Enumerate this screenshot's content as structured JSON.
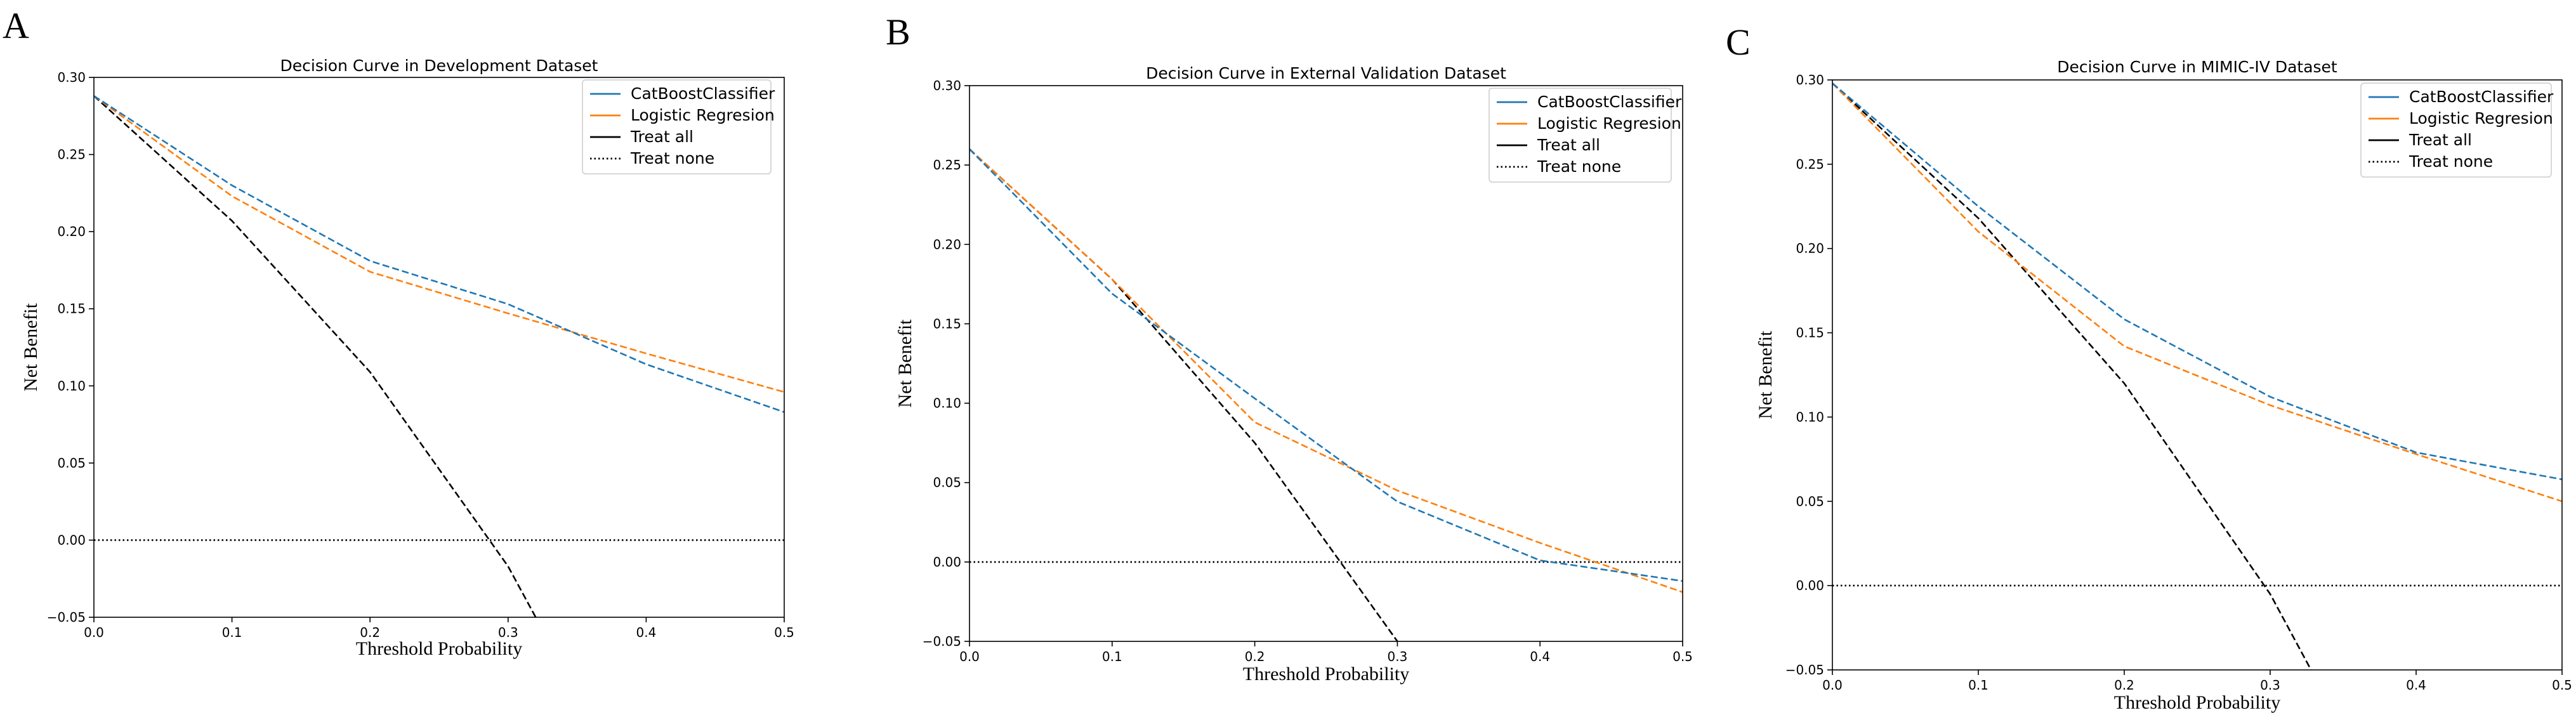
{
  "colors": {
    "catboost": "#1f77b4",
    "logistic": "#ff7f0e",
    "treat_all": "#000000",
    "treat_none": "#000000"
  },
  "chart_data": [
    {
      "panel_letter": "A",
      "type": "line",
      "title": "Decision Curve in Development Dataset",
      "xlabel": "Threshold Probability",
      "ylabel": "Net Benefit",
      "xlim": [
        0.0,
        0.5
      ],
      "ylim": [
        -0.05,
        0.3
      ],
      "xticks": [
        "0.0",
        "0.1",
        "0.2",
        "0.3",
        "0.4",
        "0.5"
      ],
      "yticks": [
        "−0.05",
        "0.00",
        "0.05",
        "0.10",
        "0.15",
        "0.20",
        "0.25",
        "0.30"
      ],
      "legend_position": "top-right",
      "grid": false,
      "series": [
        {
          "name": "CatBoostClassifier",
          "color": "#1f77b4",
          "style": "dashed",
          "legend_style": "solid",
          "x": [
            0.0,
            0.1,
            0.2,
            0.3,
            0.4,
            0.5
          ],
          "y": [
            0.288,
            0.23,
            0.181,
            0.153,
            0.114,
            0.083
          ]
        },
        {
          "name": "Logistic Regresion",
          "color": "#ff7f0e",
          "style": "dashed",
          "legend_style": "solid",
          "x": [
            0.0,
            0.1,
            0.2,
            0.3,
            0.4,
            0.5
          ],
          "y": [
            0.288,
            0.223,
            0.174,
            0.147,
            0.121,
            0.096
          ]
        },
        {
          "name": "Treat all",
          "color": "#000000",
          "style": "dashed",
          "legend_style": "solid",
          "x": [
            0.0,
            0.1,
            0.2,
            0.3,
            0.32
          ],
          "y": [
            0.288,
            0.207,
            0.109,
            -0.017,
            -0.05
          ]
        },
        {
          "name": "Treat none",
          "color": "#000000",
          "style": "dotted",
          "legend_style": "dotted",
          "x": [
            0.0,
            0.5
          ],
          "y": [
            0.0,
            0.0
          ]
        }
      ]
    },
    {
      "panel_letter": "B",
      "type": "line",
      "title": "Decision Curve in External Validation Dataset",
      "xlabel": "Threshold Probability",
      "ylabel": "Net Benefit",
      "xlim": [
        0.0,
        0.5
      ],
      "ylim": [
        -0.05,
        0.3
      ],
      "xticks": [
        "0.0",
        "0.1",
        "0.2",
        "0.3",
        "0.4",
        "0.5"
      ],
      "yticks": [
        "−0.05",
        "0.00",
        "0.05",
        "0.10",
        "0.15",
        "0.20",
        "0.25",
        "0.30"
      ],
      "legend_position": "top-right",
      "grid": false,
      "series": [
        {
          "name": "CatBoostClassifier",
          "color": "#1f77b4",
          "style": "dashed",
          "legend_style": "solid",
          "x": [
            0.0,
            0.1,
            0.2,
            0.3,
            0.4,
            0.5
          ],
          "y": [
            0.26,
            0.169,
            0.103,
            0.038,
            0.001,
            -0.012
          ]
        },
        {
          "name": "Logistic Regresion",
          "color": "#ff7f0e",
          "style": "dashed",
          "legend_style": "solid",
          "x": [
            0.0,
            0.1,
            0.2,
            0.3,
            0.4,
            0.5
          ],
          "y": [
            0.26,
            0.178,
            0.088,
            0.045,
            0.012,
            -0.019
          ]
        },
        {
          "name": "Treat all",
          "color": "#000000",
          "style": "dashed",
          "legend_style": "solid",
          "x": [
            0.0,
            0.1,
            0.2,
            0.3
          ],
          "y": [
            0.26,
            0.178,
            0.075,
            -0.05
          ]
        },
        {
          "name": "Treat none",
          "color": "#000000",
          "style": "dotted",
          "legend_style": "dotted",
          "x": [
            0.0,
            0.5
          ],
          "y": [
            0.0,
            0.0
          ]
        }
      ]
    },
    {
      "panel_letter": "C",
      "type": "line",
      "title": "Decision Curve in MIMIC-IV Dataset",
      "xlabel": "Threshold Probability",
      "ylabel": "Net Benefit",
      "xlim": [
        0.0,
        0.5
      ],
      "ylim": [
        -0.05,
        0.3
      ],
      "xticks": [
        "0.0",
        "0.1",
        "0.2",
        "0.3",
        "0.4",
        "0.5"
      ],
      "yticks": [
        "−0.05",
        "0.00",
        "0.05",
        "0.10",
        "0.15",
        "0.20",
        "0.25",
        "0.30"
      ],
      "legend_position": "top-right",
      "grid": false,
      "series": [
        {
          "name": "CatBoostClassifier",
          "color": "#1f77b4",
          "style": "dashed",
          "legend_style": "solid",
          "x": [
            0.0,
            0.1,
            0.2,
            0.3,
            0.4,
            0.5
          ],
          "y": [
            0.298,
            0.225,
            0.158,
            0.112,
            0.079,
            0.063
          ]
        },
        {
          "name": "Logistic Regresion",
          "color": "#ff7f0e",
          "style": "dashed",
          "legend_style": "solid",
          "x": [
            0.0,
            0.1,
            0.2,
            0.3,
            0.4,
            0.5
          ],
          "y": [
            0.298,
            0.21,
            0.142,
            0.107,
            0.078,
            0.05
          ]
        },
        {
          "name": "Treat all",
          "color": "#000000",
          "style": "dashed",
          "legend_style": "solid",
          "x": [
            0.0,
            0.1,
            0.2,
            0.3,
            0.328
          ],
          "y": [
            0.298,
            0.218,
            0.12,
            -0.005,
            -0.05
          ]
        },
        {
          "name": "Treat none",
          "color": "#000000",
          "style": "dotted",
          "legend_style": "dotted",
          "x": [
            0.0,
            0.5
          ],
          "y": [
            0.0,
            0.0
          ]
        }
      ]
    }
  ]
}
